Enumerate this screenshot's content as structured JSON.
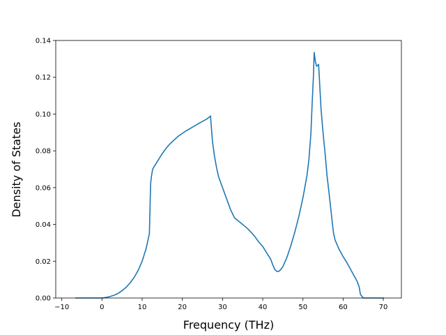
{
  "chart_data": {
    "type": "line",
    "title": "",
    "xlabel": "Frequency (THz)",
    "ylabel": "Density of States",
    "xlim": [
      -11.5,
      74.5
    ],
    "ylim": [
      0.0,
      0.14
    ],
    "xticks": [
      -10,
      0,
      10,
      20,
      30,
      40,
      50,
      60,
      70
    ],
    "xtick_labels": [
      "−10",
      "0",
      "10",
      "20",
      "30",
      "40",
      "50",
      "60",
      "70"
    ],
    "yticks": [
      0.0,
      0.02,
      0.04,
      0.06,
      0.08,
      0.1,
      0.12,
      0.14
    ],
    "ytick_labels": [
      "0.00",
      "0.02",
      "0.04",
      "0.06",
      "0.08",
      "0.10",
      "0.12",
      "0.14"
    ],
    "grid": false,
    "legend": "none",
    "line_color": "#1f77b4",
    "series": [
      {
        "x": [
          -6.5,
          -4,
          -2,
          0,
          1,
          2,
          3,
          4,
          5,
          6,
          7,
          8,
          9,
          10,
          11,
          11.8,
          12.1,
          12.3,
          12.6,
          13,
          14,
          15,
          16,
          17,
          18,
          19,
          20,
          21,
          22,
          23,
          24,
          25,
          26,
          26.8,
          27,
          27.5,
          28,
          28.5,
          29,
          30,
          31,
          31.5,
          32,
          33,
          34,
          35,
          36,
          37,
          38,
          39,
          40,
          41,
          42,
          42.5,
          43,
          43.5,
          44,
          44.5,
          45,
          45.5,
          46,
          47,
          48,
          49,
          50,
          51,
          51.5,
          52,
          52.3,
          52.6,
          52.8,
          53.1,
          53.4,
          53.7,
          53.9,
          54.2,
          54.5,
          55,
          55.5,
          56,
          56.5,
          57,
          57.3,
          57.6,
          58,
          59,
          60,
          61,
          62,
          63,
          63.5,
          64,
          64.3,
          65,
          66,
          70
        ],
        "y": [
          0.0,
          0.0,
          0.0,
          0.0,
          0.0003,
          0.0008,
          0.0015,
          0.0025,
          0.004,
          0.0058,
          0.0082,
          0.0112,
          0.015,
          0.02,
          0.027,
          0.035,
          0.062,
          0.066,
          0.07,
          0.0715,
          0.075,
          0.0785,
          0.0815,
          0.084,
          0.086,
          0.088,
          0.0895,
          0.091,
          0.0922,
          0.0935,
          0.0948,
          0.096,
          0.0972,
          0.0985,
          0.099,
          0.085,
          0.077,
          0.071,
          0.066,
          0.06,
          0.054,
          0.051,
          0.048,
          0.0435,
          0.0418,
          0.04,
          0.0382,
          0.036,
          0.0335,
          0.0305,
          0.028,
          0.0245,
          0.021,
          0.018,
          0.0155,
          0.0145,
          0.0145,
          0.0155,
          0.017,
          0.0195,
          0.022,
          0.0285,
          0.036,
          0.0445,
          0.0545,
          0.0665,
          0.0755,
          0.09,
          0.106,
          0.12,
          0.1335,
          0.1285,
          0.126,
          0.1265,
          0.127,
          0.115,
          0.103,
          0.09,
          0.079,
          0.0665,
          0.057,
          0.047,
          0.041,
          0.0355,
          0.0315,
          0.0265,
          0.0225,
          0.019,
          0.015,
          0.011,
          0.009,
          0.006,
          0.002,
          0.0,
          0.0,
          0.0
        ]
      }
    ]
  }
}
